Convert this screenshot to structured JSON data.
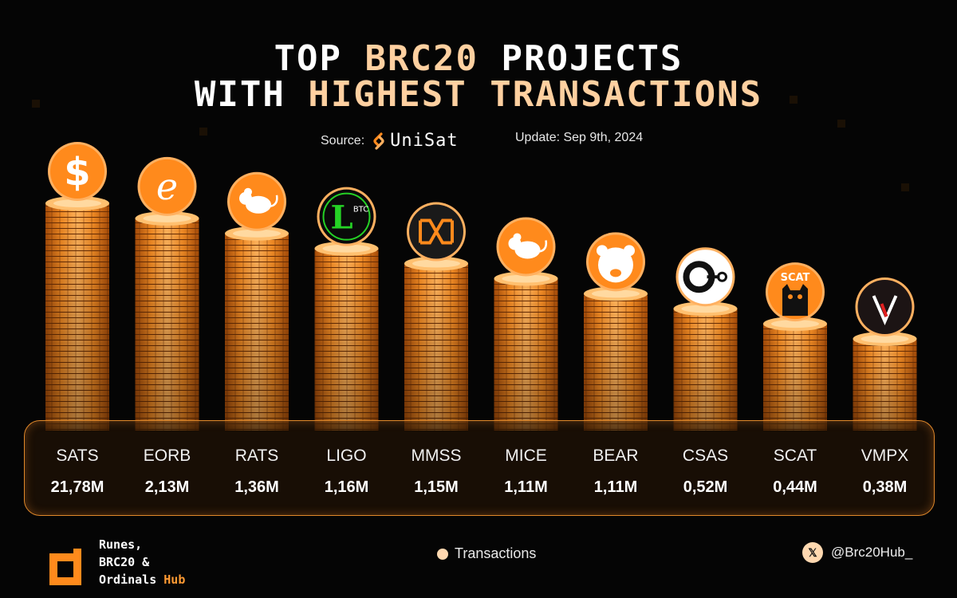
{
  "header": {
    "title_line1_white_a": "TOP",
    "title_line1_orange": "BRC20",
    "title_line1_white_b": "PROJECTS",
    "title_line2_white": "WITH",
    "title_line2_orange": "HIGHEST TRANSACTIONS",
    "source_label": "Source:",
    "source_name": "UniSat",
    "update": "Update: Sep 9th, 2024"
  },
  "chart_data": {
    "type": "bar",
    "categories": [
      "SATS",
      "EORB",
      "RATS",
      "LIGO",
      "MMSS",
      "MICE",
      "BEAR",
      "CSAS",
      "SCAT",
      "VMPX"
    ],
    "value_labels": [
      "21,78M",
      "2,13M",
      "1,36M",
      "1,16M",
      "1,15M",
      "1,11M",
      "1,11M",
      "0,52M",
      "0,44M",
      "0,38M"
    ],
    "series": [
      {
        "name": "Transactions",
        "values": [
          21.78,
          2.13,
          1.36,
          1.16,
          1.15,
          1.11,
          1.11,
          0.52,
          0.44,
          0.38
        ]
      }
    ],
    "unit": "M",
    "legend": "bottom-center",
    "icons": [
      "dollar-coin-icon",
      "eorb-coin-icon",
      "rat-icon",
      "ligo-btc-icon",
      "mmss-icon",
      "mouse-icon",
      "bear-icon",
      "csas-icon",
      "scat-cat-icon",
      "vmpx-icon"
    ]
  },
  "legend": {
    "label": "Transactions"
  },
  "brand": {
    "line1": "Runes,",
    "line2": "BRC20 &",
    "line3a": "Ordinals",
    "line3b": "Hub"
  },
  "social": {
    "handle": "@Brc20Hub_",
    "icon": "x-logo-icon"
  },
  "colors": {
    "accent": "#ff8a1c",
    "title_orange": "#ffd0a0",
    "background": "#050505"
  }
}
